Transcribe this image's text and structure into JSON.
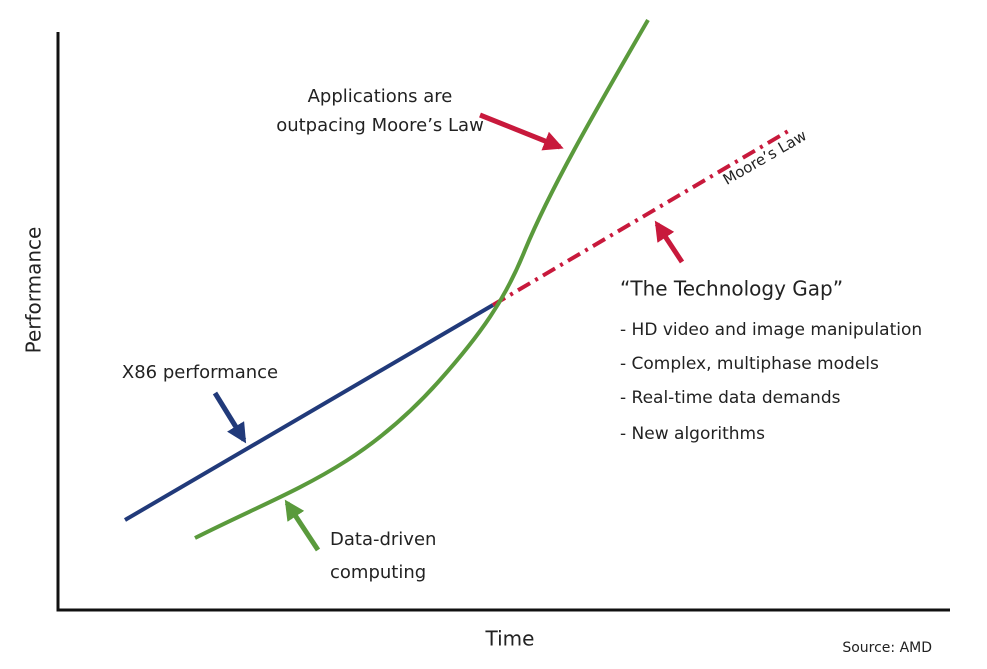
{
  "axes": {
    "y_label": "Performance",
    "x_label": "Time"
  },
  "applications": {
    "lines": [
      "Applications are",
      "outpacing Moore’s Law"
    ]
  },
  "moores_law": "Moore’s Law",
  "technology_gap": {
    "title": "“The Technology Gap”",
    "items": [
      "- HD video and image manipulation",
      "- Complex, multiphase models",
      "- Real-time data demands",
      "- New algorithms"
    ]
  },
  "x86": "X86 performance",
  "data_driven": {
    "lines": [
      "Data-driven",
      "computing"
    ]
  },
  "source": "Source: AMD"
}
